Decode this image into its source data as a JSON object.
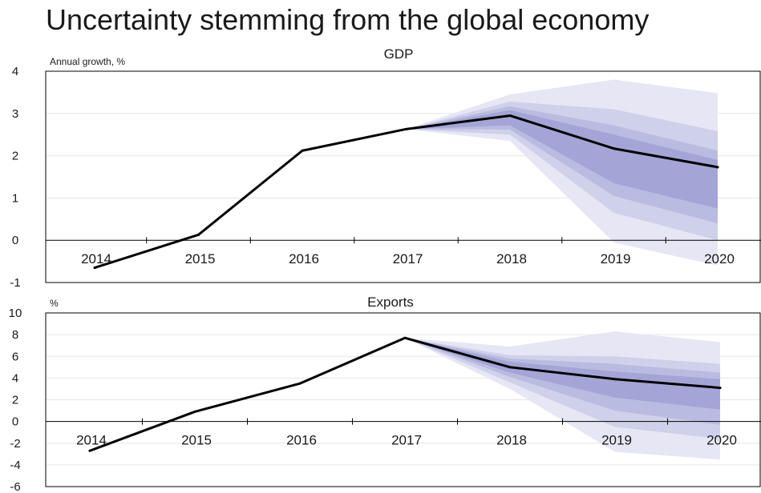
{
  "page_title": "Uncertainty stemming from the global economy",
  "chart_data": [
    {
      "type": "line",
      "title": "GDP",
      "ylabel": "Annual growth, %",
      "xlabel": "",
      "categories": [
        "2014",
        "2015",
        "2016",
        "2017",
        "2018",
        "2019",
        "2020"
      ],
      "ylim": [
        -1,
        4
      ],
      "yticks": [
        -1,
        0,
        1,
        2,
        3,
        4
      ],
      "grid": true,
      "series": [
        {
          "values": [
            -0.65,
            0.13,
            2.12,
            2.63,
            2.95,
            2.17,
            1.73
          ]
        }
      ],
      "fan_bands": [
        {
          "x": [
            "2017",
            "2018",
            "2019",
            "2020"
          ],
          "upper": [
            2.63,
            3.45,
            3.8,
            3.48
          ],
          "lower": [
            2.63,
            2.35,
            -0.05,
            -0.6
          ]
        },
        {
          "x": [
            "2017",
            "2018",
            "2019",
            "2020"
          ],
          "upper": [
            2.63,
            3.28,
            3.1,
            2.58
          ],
          "lower": [
            2.63,
            2.5,
            0.65,
            0.0
          ]
        },
        {
          "x": [
            "2017",
            "2018",
            "2019",
            "2020"
          ],
          "upper": [
            2.63,
            3.17,
            2.72,
            2.12
          ],
          "lower": [
            2.63,
            2.62,
            1.05,
            0.4
          ]
        },
        {
          "x": [
            "2017",
            "2018",
            "2019",
            "2020"
          ],
          "upper": [
            2.63,
            3.08,
            2.5,
            1.9
          ],
          "lower": [
            2.63,
            2.72,
            1.35,
            0.75
          ]
        }
      ],
      "fan_colors": [
        "#e6e6f4",
        "#cfd0ea",
        "#b9bbe0",
        "#a3a5d6"
      ],
      "line_color": "#000000"
    },
    {
      "type": "line",
      "title": "Exports",
      "ylabel": "%",
      "xlabel": "",
      "categories": [
        "2014",
        "2015",
        "2016",
        "2017",
        "2018",
        "2019",
        "2020"
      ],
      "ylim": [
        -6,
        10
      ],
      "yticks": [
        -6,
        -4,
        -2,
        0,
        2,
        4,
        6,
        8,
        10
      ],
      "grid": true,
      "series": [
        {
          "values": [
            -2.7,
            0.9,
            3.5,
            7.7,
            5.0,
            3.9,
            3.1
          ]
        }
      ],
      "fan_bands": [
        {
          "x": [
            "2017",
            "2018",
            "2019",
            "2020"
          ],
          "upper": [
            7.7,
            6.9,
            8.3,
            7.3
          ],
          "lower": [
            7.7,
            3.0,
            -2.8,
            -3.5
          ]
        },
        {
          "x": [
            "2017",
            "2018",
            "2019",
            "2020"
          ],
          "upper": [
            7.7,
            6.1,
            6.0,
            5.3
          ],
          "lower": [
            7.7,
            3.6,
            -0.5,
            -1.6
          ]
        },
        {
          "x": [
            "2017",
            "2018",
            "2019",
            "2020"
          ],
          "upper": [
            7.7,
            5.8,
            5.3,
            4.5
          ],
          "lower": [
            7.7,
            4.1,
            1.0,
            -0.3
          ]
        },
        {
          "x": [
            "2017",
            "2018",
            "2019",
            "2020"
          ],
          "upper": [
            7.7,
            5.5,
            4.6,
            3.9
          ],
          "lower": [
            7.7,
            4.5,
            2.2,
            1.1
          ]
        }
      ],
      "fan_colors": [
        "#e6e6f4",
        "#cfd0ea",
        "#b9bbe0",
        "#a3a5d6"
      ],
      "line_color": "#000000"
    }
  ]
}
